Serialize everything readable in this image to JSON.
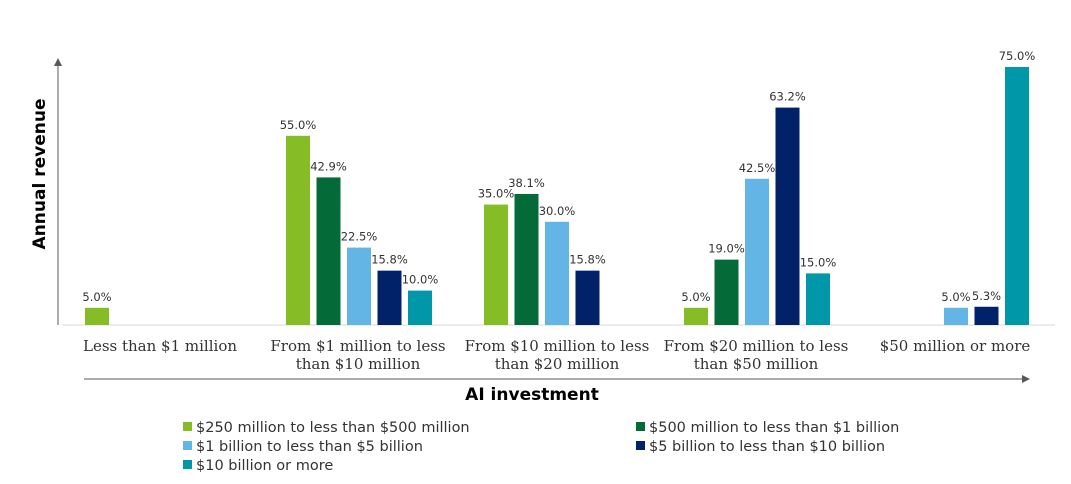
{
  "chart_data": {
    "type": "bar",
    "xlabel": "AI investment",
    "ylabel": "Annual revenue",
    "ylim": [
      0,
      75
    ],
    "grid": false,
    "legend_position": "bottom",
    "categories": [
      "Less than $1 million",
      "From $1 million to less than $10 million",
      "From $10 million to less than $20 million",
      "From $20 million to less than $50 million",
      "$50 million or more"
    ],
    "series": [
      {
        "name": "$250 million to less than $500 million",
        "color": "#86bc25",
        "values": [
          5.0,
          55.0,
          35.0,
          5.0,
          null
        ]
      },
      {
        "name": "$500 million to less than $1 billion",
        "color": "#046a38",
        "values": [
          null,
          42.9,
          38.1,
          19.0,
          null
        ]
      },
      {
        "name": "$1 billion to less than $5 billion",
        "color": "#62b5e5",
        "values": [
          null,
          22.5,
          30.0,
          42.5,
          5.0
        ]
      },
      {
        "name": "$5 billion to less than $10 billion",
        "color": "#012169",
        "values": [
          null,
          15.8,
          15.8,
          63.2,
          5.3
        ]
      },
      {
        "name": "$10 billion or more",
        "color": "#0097a9",
        "values": [
          null,
          10.0,
          null,
          15.0,
          75.0
        ]
      }
    ]
  }
}
